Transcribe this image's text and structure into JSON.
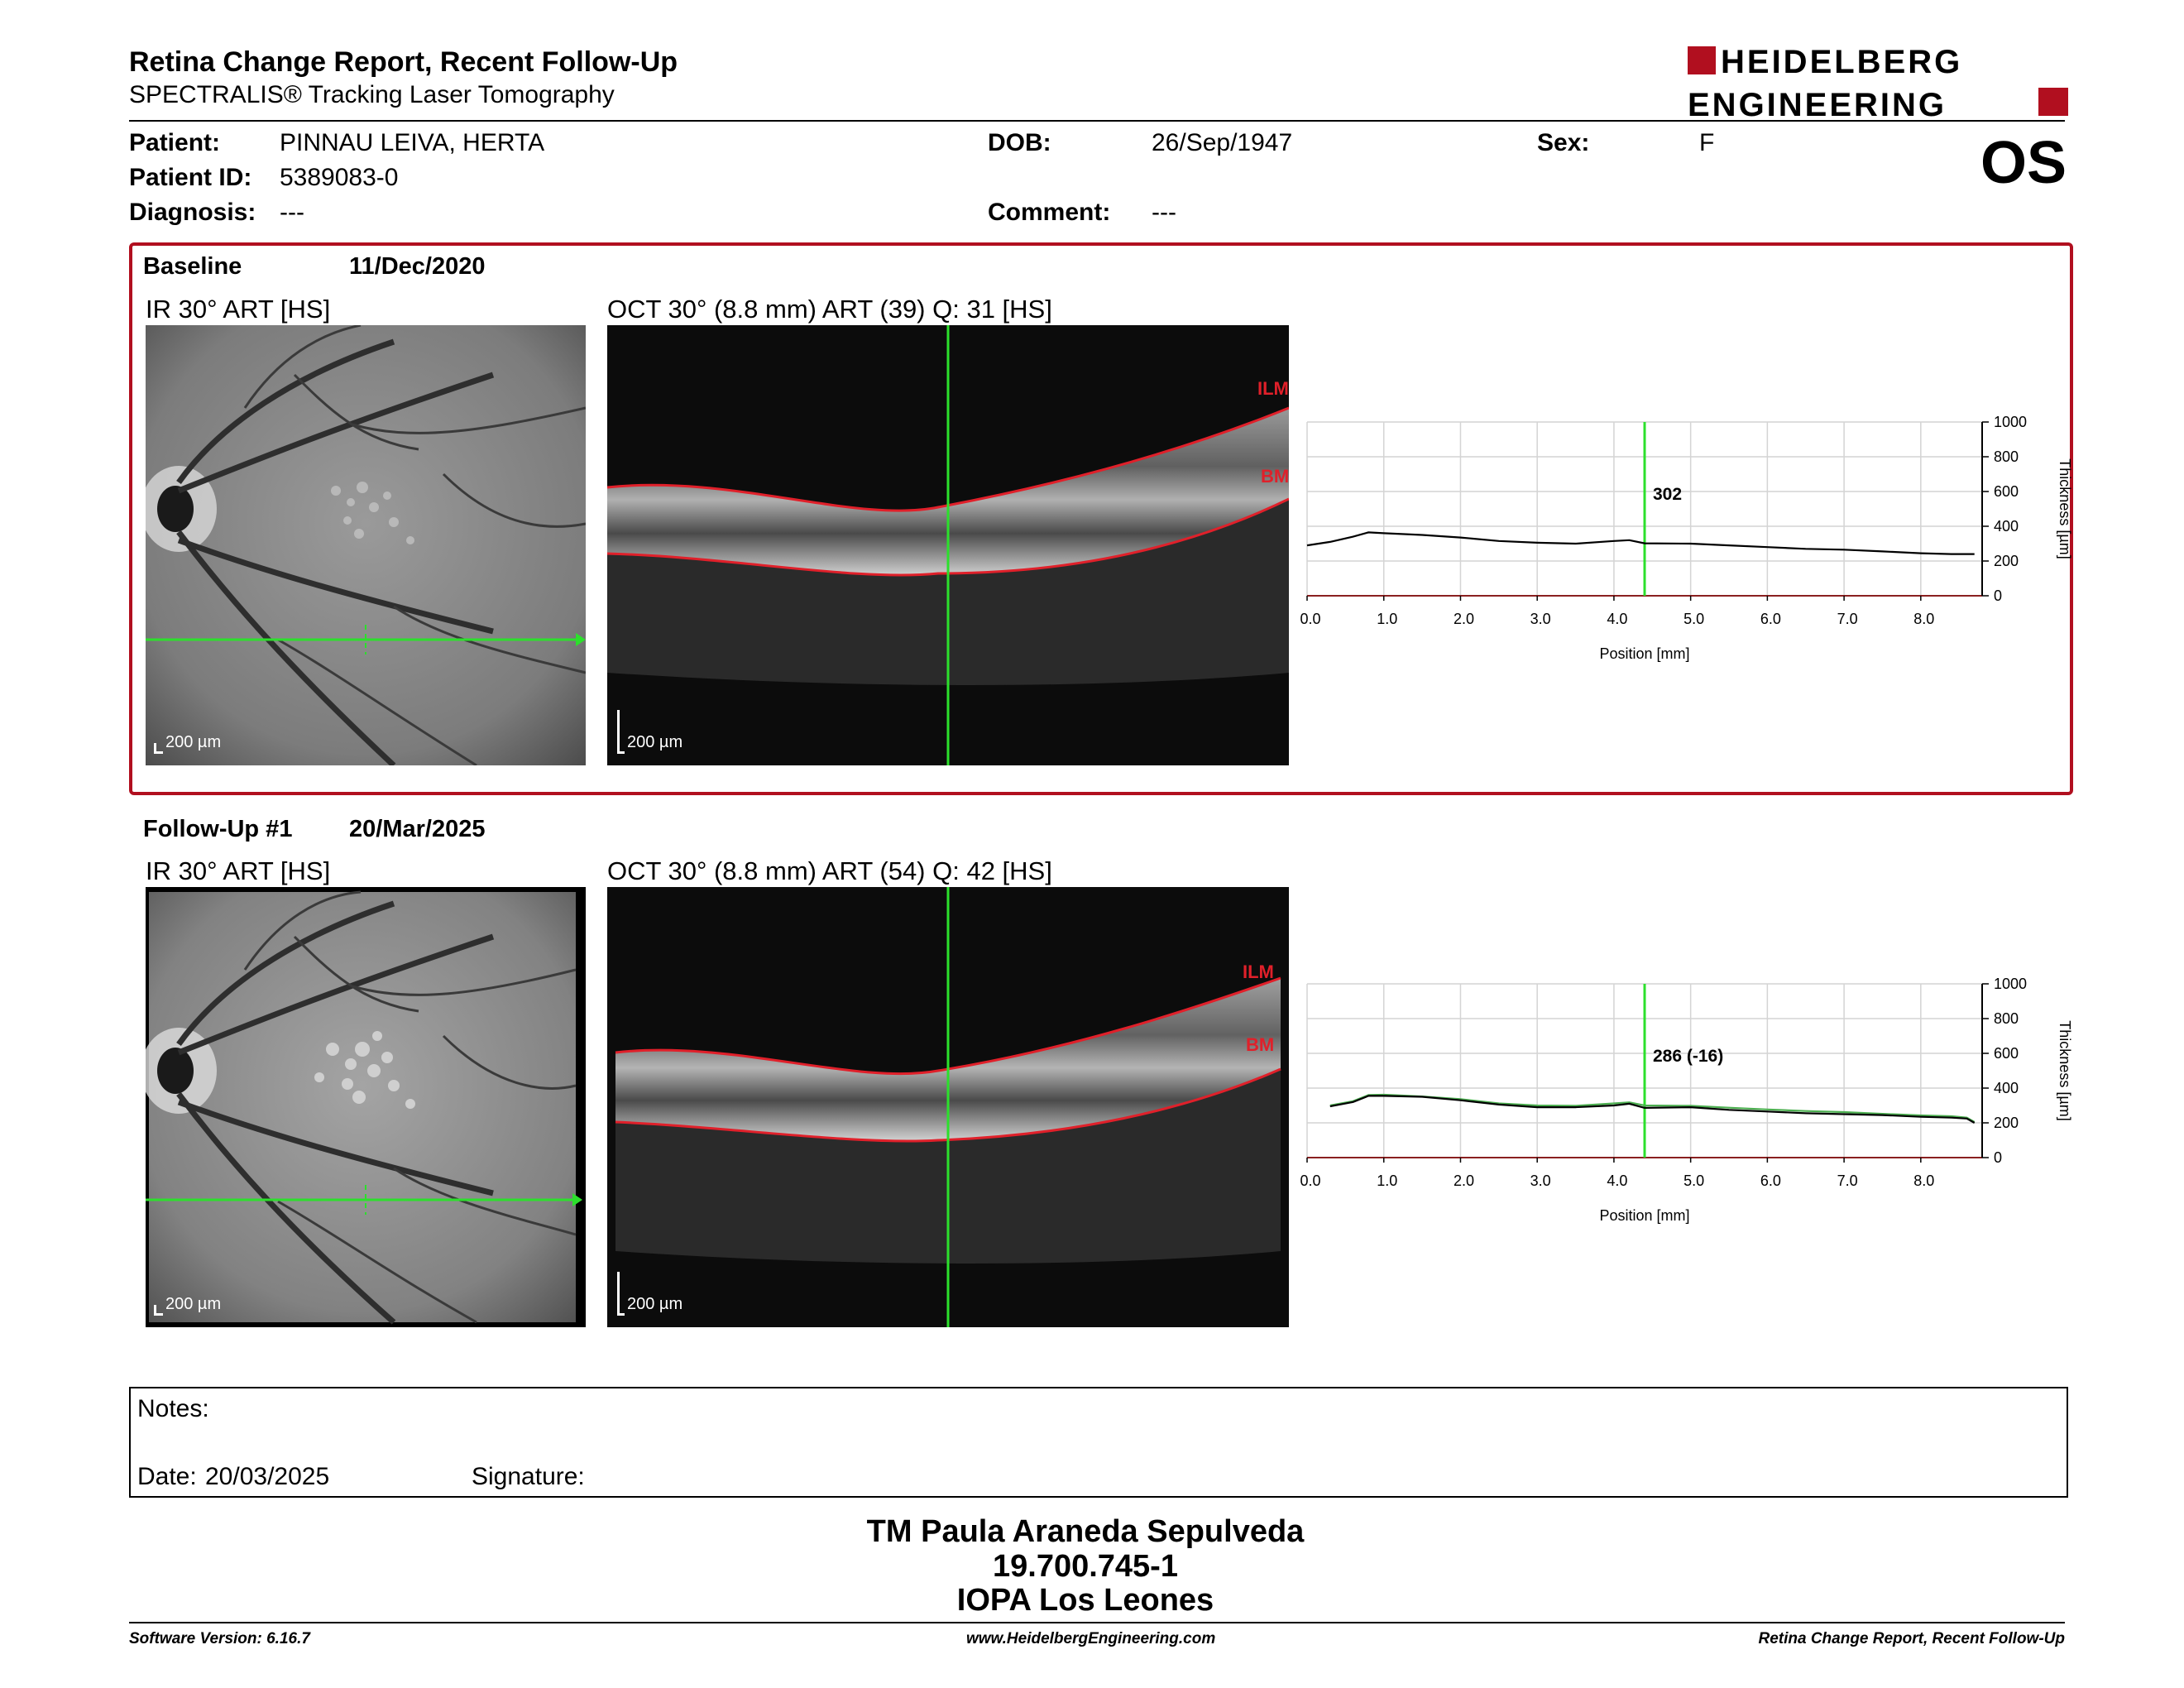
{
  "header": {
    "title": "Retina Change Report, Recent Follow-Up",
    "subtitle": "SPECTRALIS® Tracking Laser Tomography",
    "logo_line1": "HEIDELBERG",
    "logo_line2": "ENGINEERING"
  },
  "patient": {
    "patient_label": "Patient:",
    "patient_value": "PINNAU LEIVA, HERTA",
    "id_label": "Patient ID:",
    "id_value": "5389083-0",
    "diagnosis_label": "Diagnosis:",
    "diagnosis_value": "---",
    "dob_label": "DOB:",
    "dob_value": "26/Sep/1947",
    "comment_label": "Comment:",
    "comment_value": "---",
    "sex_label": "Sex:",
    "sex_value": "F",
    "eye": "OS"
  },
  "baseline": {
    "label": "Baseline",
    "date": "11/Dec/2020",
    "ir_caption": "IR 30° ART [HS]",
    "oct_caption": "OCT 30° (8.8 mm) ART (39) Q: 31 [HS]",
    "scale_ir": "200 µm",
    "scale_oct": "200 µm",
    "ilm": "ILM",
    "bm": "BM"
  },
  "followup": {
    "label": "Follow-Up #1",
    "date": "20/Mar/2025",
    "ir_caption": "IR 30° ART [HS]",
    "oct_caption": "OCT 30° (8.8 mm) ART (54) Q: 42 [HS]",
    "scale_ir": "200 µm",
    "scale_oct": "200 µm",
    "ilm": "ILM",
    "bm": "BM"
  },
  "chart_data": [
    {
      "type": "line",
      "xlabel": "Position [mm]",
      "ylabel": "Thickness [µm]",
      "xlim": [
        0,
        8.8
      ],
      "ylim": [
        0,
        1000
      ],
      "x_ticks": [
        "0.0",
        "1.0",
        "2.0",
        "3.0",
        "4.0",
        "5.0",
        "6.0",
        "7.0",
        "8.0"
      ],
      "y_ticks": [
        "0",
        "200",
        "400",
        "600",
        "800",
        "1000"
      ],
      "marker_x": 4.4,
      "marker_label": "302",
      "series": [
        {
          "color": "#000000",
          "x": [
            0,
            0.3,
            0.6,
            0.8,
            1.0,
            1.5,
            2.0,
            2.5,
            3.0,
            3.5,
            4.0,
            4.2,
            4.4,
            5.0,
            5.5,
            6.0,
            6.5,
            7.0,
            7.5,
            8.0,
            8.4,
            8.7
          ],
          "y": [
            290,
            310,
            340,
            365,
            360,
            350,
            335,
            315,
            305,
            300,
            315,
            320,
            302,
            300,
            290,
            280,
            270,
            265,
            255,
            245,
            240,
            240
          ]
        }
      ]
    },
    {
      "type": "line",
      "xlabel": "Position [mm]",
      "ylabel": "Thickness [µm]",
      "xlim": [
        0,
        8.8
      ],
      "ylim": [
        0,
        1000
      ],
      "x_ticks": [
        "0.0",
        "1.0",
        "2.0",
        "3.0",
        "4.0",
        "5.0",
        "6.0",
        "7.0",
        "8.0"
      ],
      "y_ticks": [
        "0",
        "200",
        "400",
        "600",
        "800",
        "1000"
      ],
      "marker_x": 4.4,
      "marker_label": "286 (-16)",
      "series": [
        {
          "color": "#000000",
          "x": [
            0.3,
            0.6,
            0.8,
            1.0,
            1.5,
            2.0,
            2.5,
            3.0,
            3.5,
            4.0,
            4.2,
            4.4,
            5.0,
            5.5,
            6.0,
            6.5,
            7.0,
            7.5,
            8.0,
            8.4,
            8.6,
            8.7
          ],
          "y": [
            295,
            320,
            355,
            355,
            350,
            330,
            305,
            290,
            290,
            300,
            310,
            286,
            290,
            275,
            265,
            255,
            250,
            245,
            235,
            230,
            225,
            200
          ]
        },
        {
          "color": "#4caf50",
          "x": [
            0.3,
            0.6,
            0.8,
            1.0,
            1.5,
            2.0,
            2.5,
            3.0,
            3.5,
            4.0,
            4.2,
            4.4,
            5.0,
            5.5,
            6.0,
            6.5,
            7.0,
            7.5,
            8.0,
            8.4,
            8.6,
            8.7
          ],
          "y": [
            300,
            325,
            360,
            362,
            352,
            336,
            312,
            300,
            298,
            312,
            318,
            300,
            298,
            287,
            277,
            268,
            262,
            252,
            243,
            238,
            230,
            205
          ]
        }
      ]
    }
  ],
  "notes": {
    "notes_label": "Notes:",
    "date_label": "Date:",
    "date_value": "20/03/2025",
    "signature_label": "Signature:"
  },
  "footer": {
    "name": "TM Paula Araneda Sepulveda",
    "rut": "19.700.745-1",
    "institution": "IOPA Los Leones",
    "software": "Software Version: 6.16.7",
    "website": "www.HeidelbergEngineering.com",
    "report": "Retina Change Report, Recent Follow-Up"
  },
  "colors": {
    "accent_red": "#b10f1f",
    "scan_green": "#2ce02c",
    "layer_red": "#e0202a"
  }
}
